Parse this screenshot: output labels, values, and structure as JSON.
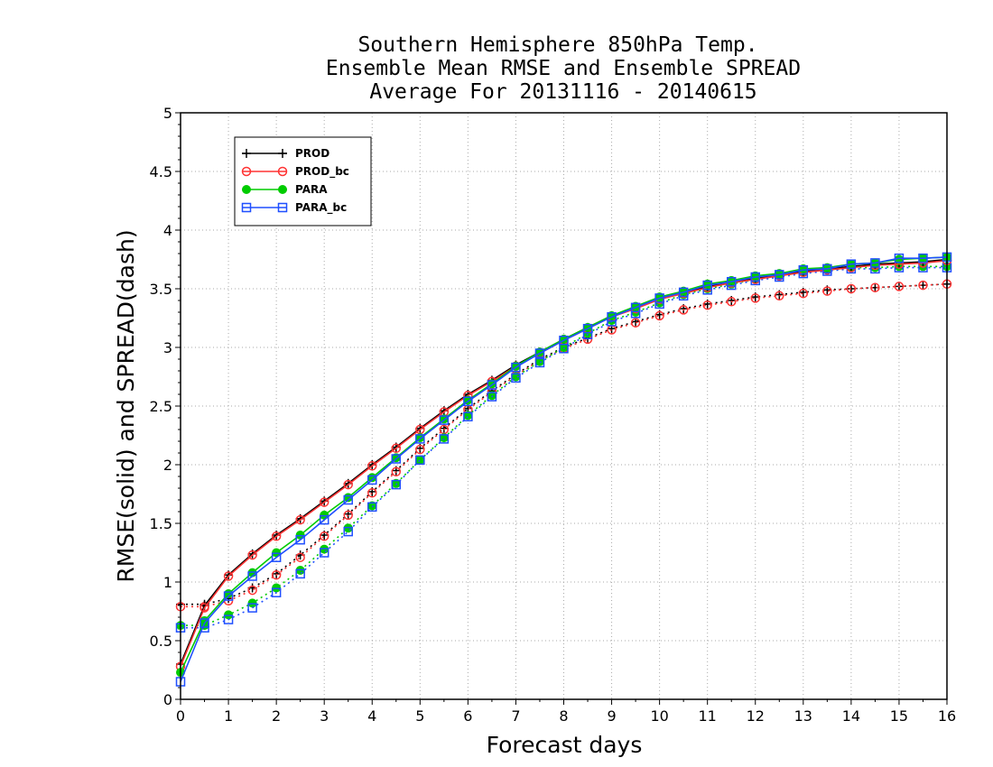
{
  "chart_data": {
    "type": "line",
    "title": [
      "Southern Hemisphere 850hPa Temp.",
      "Ensemble Mean RMSE and Ensemble SPREAD",
      "Average For 20131116 - 20140615"
    ],
    "xlabel": "Forecast days",
    "ylabel": "RMSE(solid) and SPREAD(dash)",
    "xlim": [
      0,
      16
    ],
    "ylim": [
      0,
      5
    ],
    "xticks": [
      "0",
      "1",
      "2",
      "3",
      "4",
      "5",
      "6",
      "7",
      "8",
      "9",
      "10",
      "11",
      "12",
      "13",
      "14",
      "15",
      "16"
    ],
    "yticks": [
      "0",
      "0.5",
      "1",
      "1.5",
      "2",
      "2.5",
      "3",
      "3.5",
      "4",
      "4.5",
      "5"
    ],
    "grid": true,
    "legend_position": "top-left",
    "x": [
      0,
      0.5,
      1,
      1.5,
      2,
      2.5,
      3,
      3.5,
      4,
      4.5,
      5,
      5.5,
      6,
      6.5,
      7,
      7.5,
      8,
      8.5,
      9,
      9.5,
      10,
      10.5,
      11,
      11.5,
      12,
      12.5,
      13,
      13.5,
      14,
      14.5,
      15,
      15.5,
      16
    ],
    "series": [
      {
        "name": "PROD",
        "color": "#000000",
        "marker": "plus",
        "style": "solid",
        "values": [
          0.3,
          0.8,
          1.06,
          1.24,
          1.4,
          1.54,
          1.69,
          1.84,
          2.0,
          2.15,
          2.31,
          2.46,
          2.6,
          2.72,
          2.85,
          2.96,
          3.07,
          3.17,
          3.27,
          3.34,
          3.42,
          3.47,
          3.52,
          3.56,
          3.59,
          3.62,
          3.65,
          3.67,
          3.69,
          3.71,
          3.72,
          3.73,
          3.75
        ]
      },
      {
        "name": "SPREAD PROD",
        "color": "#000000",
        "marker": "plus",
        "style": "dotted",
        "values": [
          0.81,
          0.81,
          0.86,
          0.95,
          1.07,
          1.23,
          1.4,
          1.58,
          1.77,
          1.95,
          2.14,
          2.31,
          2.48,
          2.63,
          2.77,
          2.9,
          3.0,
          3.08,
          3.16,
          3.22,
          3.28,
          3.33,
          3.37,
          3.4,
          3.43,
          3.45,
          3.47,
          3.49,
          3.5,
          3.51,
          3.52,
          3.53,
          3.54
        ]
      },
      {
        "name": "PROD_bc",
        "color": "#ff3333",
        "marker": "circle",
        "style": "solid",
        "values": [
          0.28,
          0.78,
          1.05,
          1.23,
          1.39,
          1.53,
          1.68,
          1.83,
          1.99,
          2.14,
          2.3,
          2.45,
          2.59,
          2.71,
          2.84,
          2.95,
          3.06,
          3.16,
          3.26,
          3.33,
          3.41,
          3.46,
          3.51,
          3.55,
          3.58,
          3.61,
          3.64,
          3.66,
          3.68,
          3.7,
          3.71,
          3.72,
          3.74
        ]
      },
      {
        "name": "SPREAD PROD_bc",
        "color": "#ff3333",
        "marker": "circle",
        "style": "dotted",
        "values": [
          0.79,
          0.79,
          0.84,
          0.93,
          1.06,
          1.21,
          1.39,
          1.57,
          1.76,
          1.94,
          2.13,
          2.3,
          2.47,
          2.62,
          2.76,
          2.89,
          2.99,
          3.07,
          3.15,
          3.21,
          3.27,
          3.32,
          3.36,
          3.39,
          3.42,
          3.44,
          3.46,
          3.48,
          3.5,
          3.51,
          3.52,
          3.53,
          3.54
        ]
      },
      {
        "name": "PARA",
        "color": "#00cc00",
        "marker": "dot",
        "style": "solid",
        "values": [
          0.23,
          0.67,
          0.9,
          1.08,
          1.25,
          1.4,
          1.57,
          1.72,
          1.89,
          2.06,
          2.23,
          2.39,
          2.55,
          2.69,
          2.84,
          2.96,
          3.07,
          3.17,
          3.27,
          3.35,
          3.43,
          3.48,
          3.54,
          3.57,
          3.61,
          3.63,
          3.67,
          3.68,
          3.71,
          3.72,
          3.75,
          3.76,
          3.77
        ]
      },
      {
        "name": "SPREAD PARA",
        "color": "#00cc00",
        "marker": "dot",
        "style": "dotted",
        "values": [
          0.63,
          0.63,
          0.72,
          0.82,
          0.95,
          1.1,
          1.28,
          1.46,
          1.65,
          1.84,
          2.04,
          2.23,
          2.42,
          2.59,
          2.75,
          2.88,
          3.0,
          3.12,
          3.23,
          3.3,
          3.38,
          3.45,
          3.5,
          3.54,
          3.58,
          3.61,
          3.64,
          3.66,
          3.68,
          3.68,
          3.69,
          3.69,
          3.69
        ]
      },
      {
        "name": "PARA_bc",
        "color": "#1f4fff",
        "marker": "square",
        "style": "solid",
        "values": [
          0.15,
          0.65,
          0.88,
          1.05,
          1.21,
          1.36,
          1.53,
          1.7,
          1.87,
          2.05,
          2.22,
          2.38,
          2.54,
          2.68,
          2.83,
          2.95,
          3.06,
          3.16,
          3.26,
          3.34,
          3.42,
          3.47,
          3.53,
          3.56,
          3.6,
          3.62,
          3.66,
          3.67,
          3.71,
          3.72,
          3.76,
          3.76,
          3.77
        ]
      },
      {
        "name": "SPREAD PARA_bc",
        "color": "#1f4fff",
        "marker": "square",
        "style": "dotted",
        "values": [
          0.61,
          0.61,
          0.68,
          0.78,
          0.91,
          1.07,
          1.25,
          1.43,
          1.64,
          1.83,
          2.04,
          2.22,
          2.41,
          2.58,
          2.74,
          2.87,
          2.99,
          3.11,
          3.22,
          3.29,
          3.37,
          3.44,
          3.49,
          3.53,
          3.57,
          3.6,
          3.63,
          3.65,
          3.67,
          3.67,
          3.68,
          3.68,
          3.68
        ]
      }
    ],
    "legend": [
      "PROD",
      "PROD_bc",
      "PARA",
      "PARA_bc"
    ]
  }
}
